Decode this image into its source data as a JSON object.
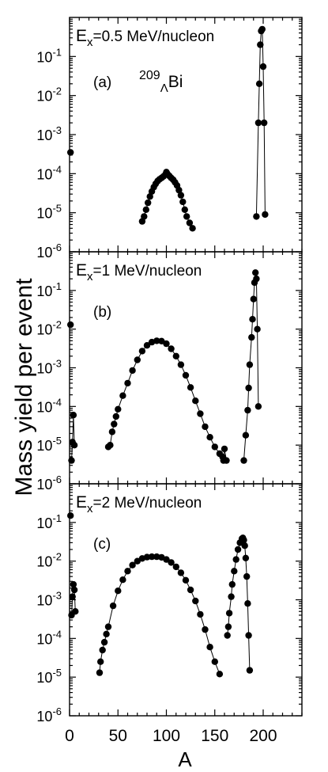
{
  "chart_data": {
    "type": "scatter",
    "ylabel": "Mass yield per event",
    "xlabel": "A",
    "xlim": [
      0,
      240
    ],
    "x_ticks": [
      0,
      50,
      100,
      150,
      200
    ],
    "ylim": [
      1e-06,
      1
    ],
    "log_y": true,
    "y_tick_labels": [
      "10-1",
      "10-2",
      "10-3",
      "10-4",
      "10-5",
      "10-6"
    ],
    "y_tick_values": [
      0.1,
      0.01,
      0.001,
      0.0001,
      1e-05,
      1e-06
    ],
    "marker": "filled-circle",
    "line_color": "#000000",
    "panels": [
      {
        "title_main": "E",
        "title_sub": "x",
        "title_rest": "=0.5 MeV/nucleon",
        "label": "(a)",
        "nucleus_mass": "209",
        "nucleus_sub": "Λ",
        "nucleus_symbol": "Bi",
        "segments": [
          [
            [
              1,
              0.00035
            ]
          ],
          [
            [
              75,
              6e-06
            ],
            [
              77,
              8e-06
            ],
            [
              79,
              1.2e-05
            ],
            [
              81,
              1.8e-05
            ],
            [
              83,
              2.6e-05
            ],
            [
              85,
              3.5e-05
            ],
            [
              87,
              4.5e-05
            ],
            [
              89,
              5.5e-05
            ],
            [
              91,
              6.5e-05
            ],
            [
              93,
              7.2e-05
            ],
            [
              95,
              7.8e-05
            ],
            [
              97,
              8.5e-05
            ],
            [
              99,
              9.5e-05
            ],
            [
              100,
              0.00011
            ],
            [
              101,
              0.0001
            ],
            [
              103,
              8.8e-05
            ],
            [
              105,
              7.8e-05
            ],
            [
              107,
              7e-05
            ],
            [
              109,
              6e-05
            ],
            [
              111,
              5e-05
            ],
            [
              113,
              3.8e-05
            ],
            [
              115,
              2.8e-05
            ],
            [
              117,
              1.9e-05
            ],
            [
              119,
              1.2e-05
            ],
            [
              121,
              8e-06
            ],
            [
              124,
              5.5e-06
            ],
            [
              127,
              4e-06
            ]
          ],
          [
            [
              193,
              8e-06
            ],
            [
              195,
              0.002
            ],
            [
              196,
              0.02
            ],
            [
              197,
              0.2
            ],
            [
              198,
              0.45
            ],
            [
              199,
              0.5
            ],
            [
              200,
              0.055
            ],
            [
              201,
              0.002
            ],
            [
              202,
              9e-06
            ]
          ]
        ]
      },
      {
        "title_main": "E",
        "title_sub": "x",
        "title_rest": "=1 MeV/nucleon",
        "label": "(b)",
        "segments": [
          [
            [
              1,
              0.013
            ]
          ],
          [
            [
              2,
              4e-06
            ],
            [
              3,
              1.2e-05
            ],
            [
              4,
              6e-05
            ],
            [
              5,
              1e-05
            ]
          ],
          [
            [
              40,
              9e-06
            ],
            [
              42,
              1e-05
            ],
            [
              44,
              2.2e-05
            ],
            [
              46,
              3.5e-05
            ],
            [
              48,
              5.5e-05
            ],
            [
              50,
              8.5e-05
            ],
            [
              55,
              0.00019
            ],
            [
              60,
              0.0004
            ],
            [
              65,
              0.00085
            ],
            [
              70,
              0.0016
            ],
            [
              75,
              0.0027
            ],
            [
              80,
              0.0038
            ],
            [
              85,
              0.0046
            ],
            [
              90,
              0.005
            ],
            [
              95,
              0.0049
            ],
            [
              100,
              0.0042
            ],
            [
              105,
              0.0031
            ],
            [
              110,
              0.002
            ],
            [
              115,
              0.0012
            ],
            [
              120,
              0.00064
            ],
            [
              125,
              0.00031
            ],
            [
              130,
              0.00014
            ],
            [
              135,
              6.5e-05
            ],
            [
              140,
              3e-05
            ],
            [
              145,
              1.6e-05
            ],
            [
              150,
              9e-06
            ],
            [
              155,
              6e-06
            ],
            [
              158,
              5e-06
            ]
          ],
          [
            [
              159,
              4e-06
            ],
            [
              160,
              8e-06
            ],
            [
              162,
              4e-06
            ]
          ],
          [
            [
              180,
              4e-06
            ],
            [
              182,
              1.8e-05
            ],
            [
              184,
              8e-05
            ],
            [
              185,
              0.0003
            ],
            [
              186,
              0.0012
            ],
            [
              188,
              0.0061
            ],
            [
              189,
              0.018
            ],
            [
              190,
              0.06
            ],
            [
              191,
              0.16
            ],
            [
              192,
              0.29
            ],
            [
              193,
              0.2
            ],
            [
              194,
              0.01
            ],
            [
              195,
              0.0001
            ]
          ]
        ]
      },
      {
        "title_main": "E",
        "title_sub": "x",
        "title_rest": "=2 MeV/nucleon",
        "label": "(c)",
        "segments": [
          [
            [
              1,
              0.15
            ]
          ],
          [
            [
              2,
              0.0004
            ],
            [
              3,
              0.0012
            ],
            [
              4,
              0.0025
            ],
            [
              5,
              0.0018
            ],
            [
              6,
              0.0005
            ]
          ],
          [
            [
              31,
              1.3e-05
            ],
            [
              32,
              2.5e-05
            ],
            [
              34,
              5e-05
            ],
            [
              36,
              8e-05
            ],
            [
              38,
              0.00013
            ],
            [
              40,
              0.0002
            ],
            [
              45,
              0.0007
            ],
            [
              50,
              0.0017
            ],
            [
              55,
              0.0033
            ],
            [
              60,
              0.0055
            ],
            [
              65,
              0.0079
            ],
            [
              70,
              0.01
            ],
            [
              75,
              0.0117
            ],
            [
              80,
              0.0127
            ],
            [
              85,
              0.013
            ],
            [
              90,
              0.013
            ],
            [
              95,
              0.0125
            ],
            [
              100,
              0.011
            ],
            [
              105,
              0.0092
            ],
            [
              110,
              0.0071
            ],
            [
              115,
              0.005
            ],
            [
              120,
              0.0032
            ],
            [
              125,
              0.0018
            ],
            [
              130,
              0.00093
            ],
            [
              135,
              0.00042
            ],
            [
              140,
              0.00017
            ],
            [
              145,
              6e-05
            ],
            [
              150,
              2.5e-05
            ],
            [
              155,
              1.2e-05
            ]
          ],
          [
            [
              163,
              0.00012
            ],
            [
              164,
              0.0002
            ],
            [
              165,
              0.00045
            ],
            [
              167,
              0.0012
            ],
            [
              168,
              0.0025
            ],
            [
              170,
              0.0055
            ],
            [
              172,
              0.011
            ],
            [
              174,
              0.02
            ],
            [
              176,
              0.03
            ],
            [
              178,
              0.038
            ],
            [
              179,
              0.04
            ],
            [
              180,
              0.035
            ],
            [
              181,
              0.025
            ],
            [
              182,
              0.012
            ],
            [
              183,
              0.004
            ],
            [
              184,
              0.0008
            ],
            [
              185,
              0.00012
            ],
            [
              186,
              1.5e-05
            ]
          ]
        ]
      }
    ]
  }
}
